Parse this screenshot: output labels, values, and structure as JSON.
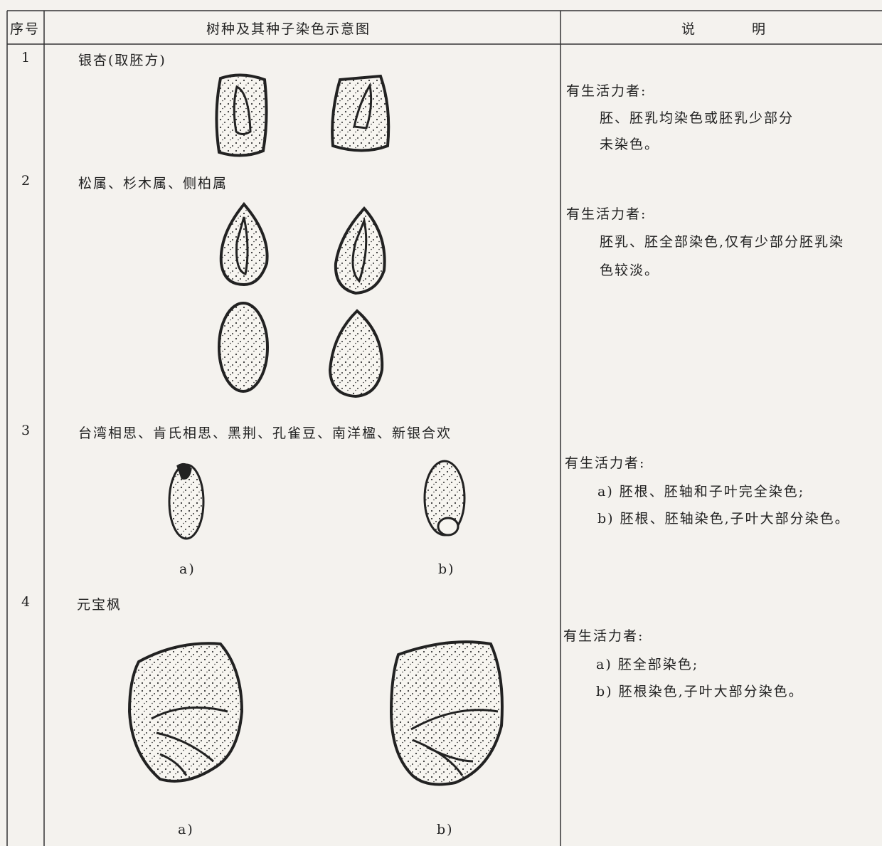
{
  "table": {
    "header": [
      "序号",
      "树种及其种子染色示意图",
      "说明"
    ],
    "rows": [
      {
        "number": "1",
        "species": "银杏(取胚方)",
        "notes": [
          "有生活力者:",
          "胚、胚乳均染色或胚乳少部分",
          "未染色。"
        ]
      },
      {
        "number": "2",
        "species": "松属、杉木属、侧柏属",
        "notes": [
          "有生活力者:",
          "胚乳、胚全部染色,仅有少部分胚乳染",
          "色较淡。"
        ]
      },
      {
        "number": "3",
        "species": "台湾相思、肯氏相思、黑荆、孔雀豆、南洋楹、新银合欢",
        "figure_labels": [
          "a)",
          "b)"
        ],
        "notes": [
          "有生活力者:",
          "a) 胚根、胚轴和子叶完全染色;",
          "b) 胚根、胚轴染色,子叶大部分染色。"
        ]
      },
      {
        "number": "4",
        "species": "元宝枫",
        "figure_labels": [
          "a)",
          "b)"
        ],
        "notes": [
          "有生活力者:",
          "a) 胚全部染色;",
          "b) 胚根染色,子叶大部分染色。"
        ]
      }
    ]
  }
}
